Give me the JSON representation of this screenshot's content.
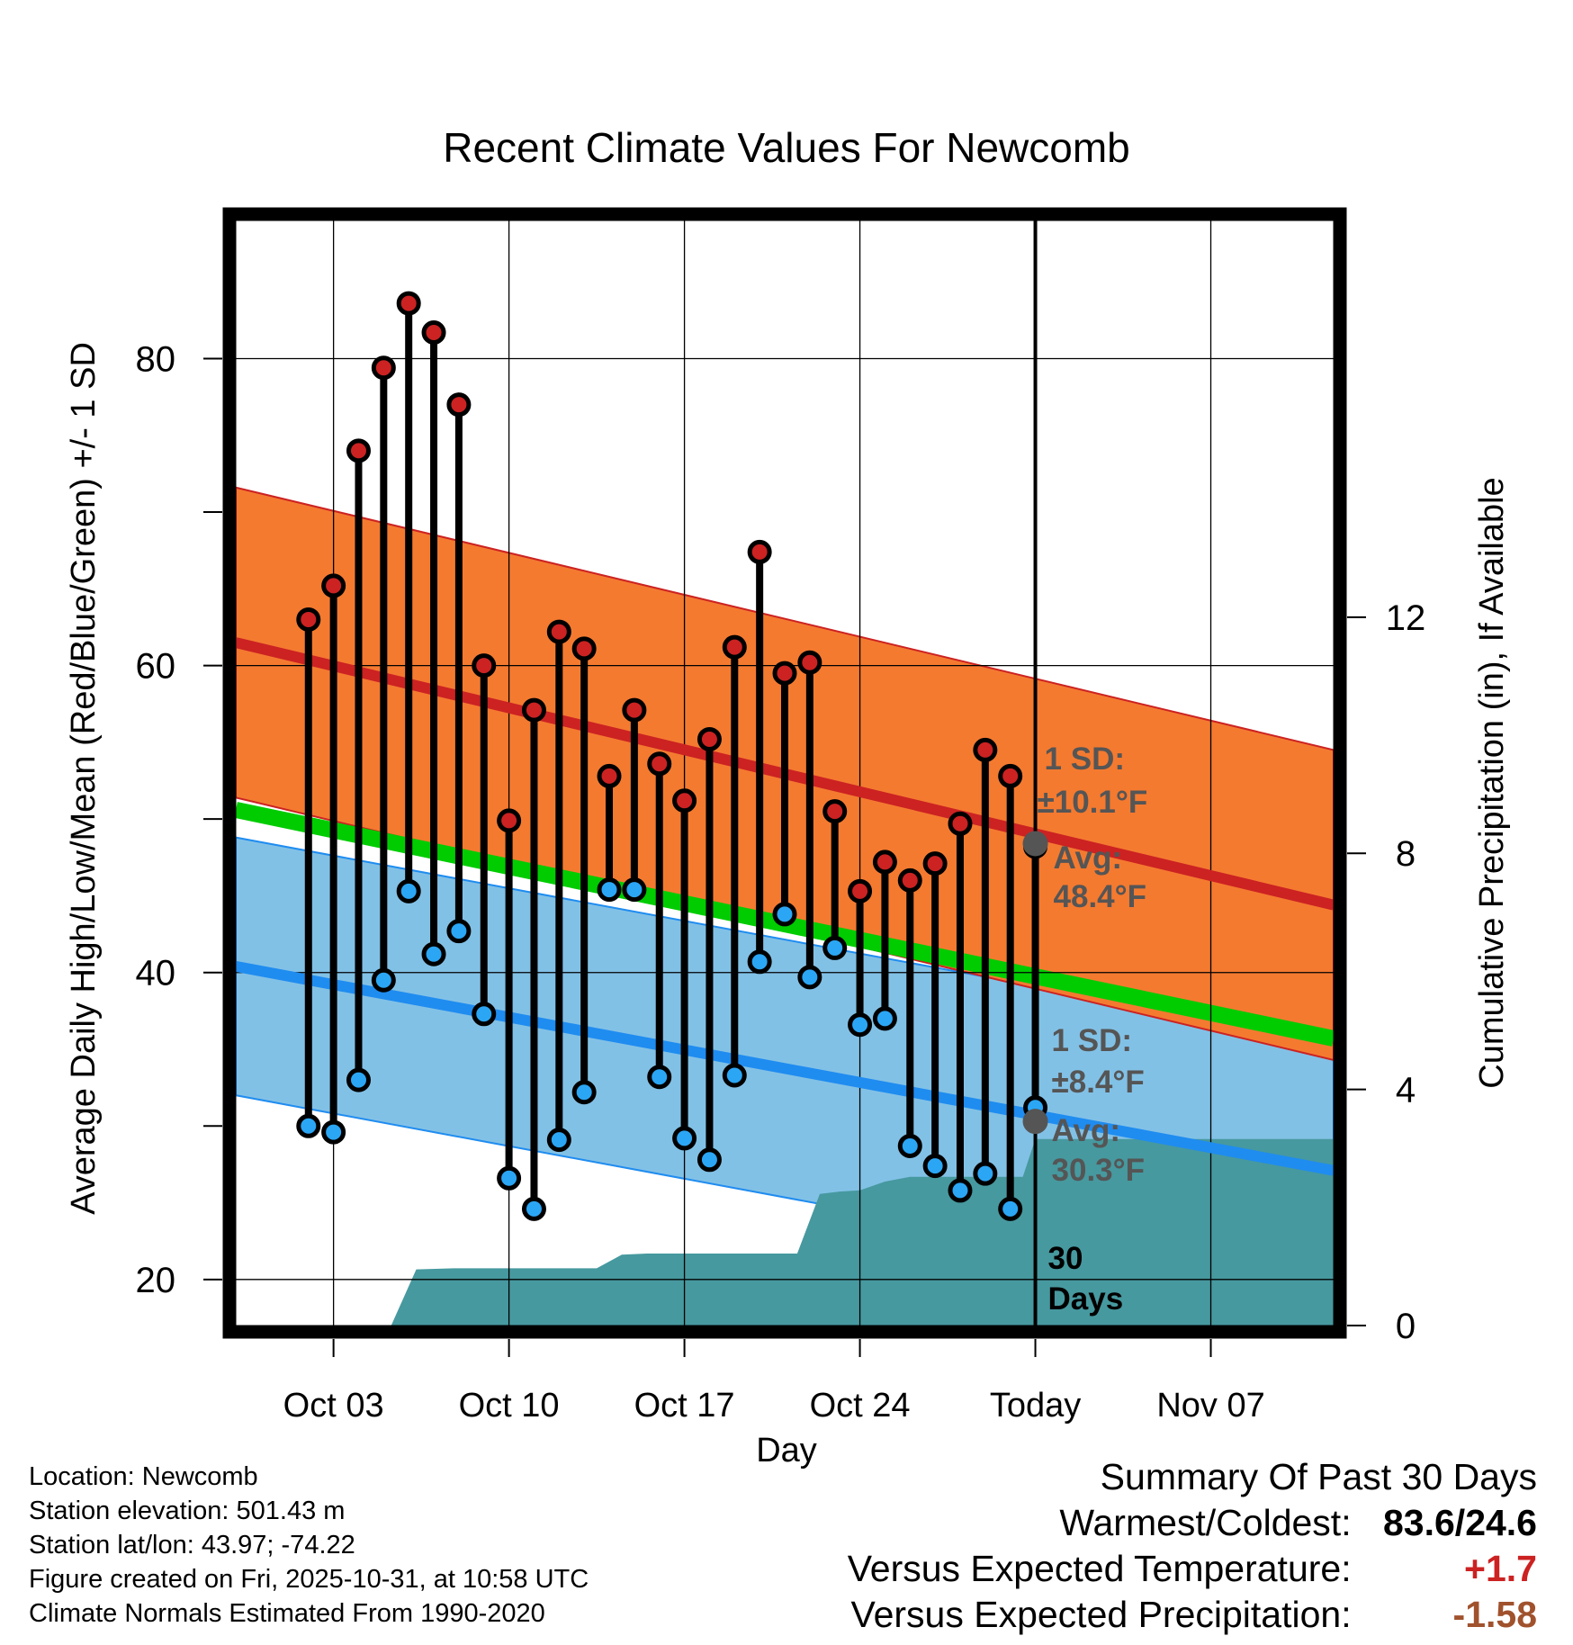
{
  "chart_data": {
    "type": "range-bar",
    "title": "Recent Climate Values For Newcomb",
    "xlabel": "Day",
    "ylabel_left": "Average Daily High/Low/Mean (Red/Blue/Green) +/- 1 SD",
    "ylabel_right": "Cumulative Precipitation (in), If Available",
    "y_left_range": [
      17,
      89
    ],
    "y_left_ticks": [
      "20",
      "40",
      "60",
      "80"
    ],
    "y_right_range": [
      0,
      18.72
    ],
    "y_right_ticks": [
      "0",
      "4",
      "8",
      "12"
    ],
    "x_range": [
      -2.9,
      40.9
    ],
    "x_tick_positions": [
      1,
      8,
      15,
      22,
      29,
      36
    ],
    "x_tick_labels": [
      "Oct 03",
      "Oct 10",
      "Oct 17",
      "Oct 24",
      "Today",
      "Nov 07"
    ],
    "days": [
      0,
      1,
      2,
      3,
      4,
      5,
      6,
      7,
      8,
      9,
      10,
      11,
      12,
      13,
      14,
      15,
      16,
      17,
      18,
      19,
      20,
      21,
      22,
      23,
      24,
      25,
      26,
      27,
      28,
      29
    ],
    "highs": [
      63.0,
      65.2,
      74.0,
      79.4,
      83.6,
      81.7,
      77.0,
      60.0,
      49.9,
      57.1,
      62.2,
      61.1,
      52.8,
      57.1,
      53.6,
      51.2,
      55.2,
      61.2,
      67.4,
      59.5,
      60.2,
      50.5,
      45.3,
      47.2,
      46.0,
      47.1,
      49.7,
      54.5,
      52.8,
      48.2
    ],
    "lows": [
      30.0,
      29.6,
      33.0,
      39.5,
      45.3,
      41.2,
      42.7,
      37.3,
      26.6,
      24.6,
      29.1,
      32.2,
      45.4,
      45.4,
      33.2,
      29.2,
      27.8,
      33.3,
      40.7,
      43.8,
      39.7,
      41.6,
      36.6,
      37.0,
      28.7,
      27.4,
      25.8,
      26.9,
      24.6,
      31.2
    ],
    "normal_high_start": 61.5,
    "normal_high_end": 44.4,
    "high_sd": 10.1,
    "normal_low_start": 40.4,
    "normal_low_end": 27.1,
    "low_sd": 8.4,
    "normal_mean_start": 50.6,
    "normal_mean_end": 35.7,
    "today_day": 29,
    "today_high_avg": 48.4,
    "today_low_avg": 30.3,
    "precip_x": [
      3.3,
      4.3,
      5.8,
      8.5,
      9.7,
      10.3,
      11.5,
      12.5,
      13.5,
      15.0,
      16.7,
      18.0,
      19.5,
      20.4,
      21.2,
      22.0,
      23.0,
      24.0,
      25.5,
      28.5,
      29.0,
      40.9
    ],
    "precip_y": [
      0.0,
      0.95,
      0.97,
      0.97,
      0.97,
      0.97,
      0.97,
      1.2,
      1.22,
      1.22,
      1.22,
      1.22,
      1.22,
      2.23,
      2.27,
      2.29,
      2.44,
      2.52,
      2.52,
      2.52,
      3.16,
      3.16
    ],
    "annotations": {
      "high_sd_label": "1 SD:",
      "high_sd_value": "±10.1°F",
      "high_avg_label": "Avg:",
      "high_avg_value": "48.4°F",
      "low_sd_label": "1 SD:",
      "low_sd_value": "±8.4°F",
      "low_avg_label": "Avg:",
      "low_avg_value": "30.3°F",
      "days_count": "30",
      "days_word": "Days"
    },
    "colors": {
      "high_band": "#f47a30",
      "high_line": "#cc2222",
      "low_band": "#82c1e6",
      "low_line": "#1f8cf0",
      "mean_band": "#00cc00",
      "precip": "#46999f",
      "high_marker": "#cc2222",
      "low_marker": "#2ba6f5",
      "avg_dot": "#555555",
      "annotation": "#555555"
    }
  },
  "info": {
    "location": "Location: Newcomb",
    "elevation": "Station elevation: 501.43 m",
    "latlon": "Station lat/lon: 43.97; -74.22",
    "created": "Figure created on Fri, 2025-10-31, at 10:58 UTC",
    "normals": "Climate Normals Estimated From 1990-2020"
  },
  "summary": {
    "title": "Summary Of Past 30 Days",
    "warmest_label": "Warmest/Coldest:",
    "warmest_value": "83.6/24.6",
    "temp_label": "Versus Expected Temperature:",
    "temp_value": "+1.7",
    "precip_label": "Versus Expected Precipitation:",
    "precip_value": "-1.58"
  }
}
